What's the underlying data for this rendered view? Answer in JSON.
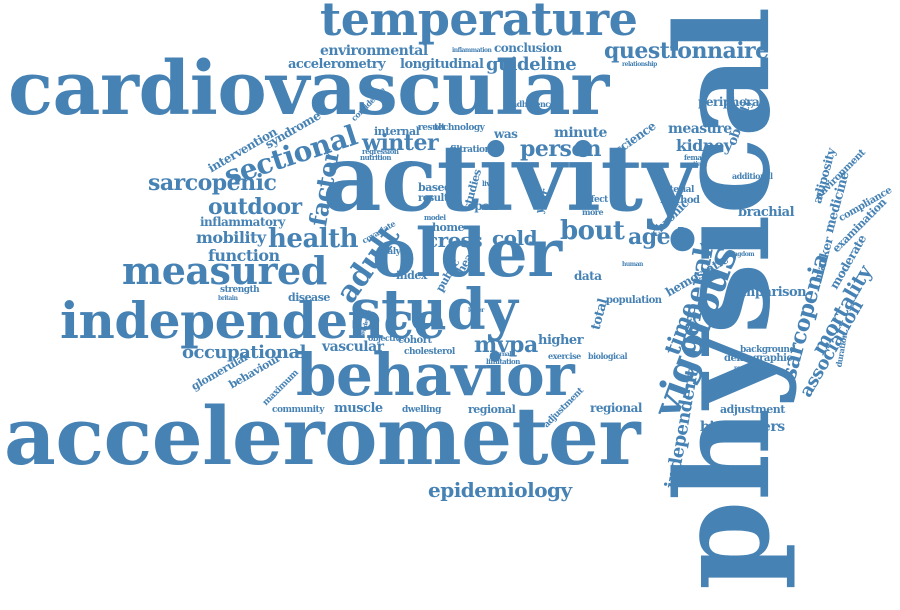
{
  "color": "#4682b4",
  "words": [
    {
      "id": "temperature",
      "text": "temperature"
    },
    {
      "id": "questionnaire",
      "text": "questionnaire"
    },
    {
      "id": "environmental",
      "text": "environmental"
    },
    {
      "id": "conclusion",
      "text": "conclusion"
    },
    {
      "id": "inflammation",
      "text": "inflammation"
    },
    {
      "id": "accelerometry",
      "text": "accelerometry"
    },
    {
      "id": "longitudinal",
      "text": "longitudinal"
    },
    {
      "id": "guideline",
      "text": "guideline"
    },
    {
      "id": "relationship",
      "text": "relationship"
    },
    {
      "id": "cardiovascular",
      "text": "cardiovascular"
    },
    {
      "id": "physical",
      "text": "physical"
    },
    {
      "id": "adherence",
      "text": "adherence"
    },
    {
      "id": "peripheral",
      "text": "peripheral"
    },
    {
      "id": "intervention",
      "text": "intervention"
    },
    {
      "id": "syndrome",
      "text": "syndrome"
    },
    {
      "id": "confidence",
      "text": "confidence"
    },
    {
      "id": "sectional",
      "text": "sectional"
    },
    {
      "id": "internal",
      "text": "internal"
    },
    {
      "id": "technology",
      "text": "technology"
    },
    {
      "id": "result",
      "text": "result"
    },
    {
      "id": "was",
      "text": "was"
    },
    {
      "id": "minute",
      "text": "minute"
    },
    {
      "id": "measure",
      "text": "measure"
    },
    {
      "id": "obesity",
      "text": "obesity"
    },
    {
      "id": "regression",
      "text": "regression"
    },
    {
      "id": "winter",
      "text": "winter"
    },
    {
      "id": "filtration",
      "text": "filtration"
    },
    {
      "id": "person",
      "text": "person"
    },
    {
      "id": "science",
      "text": "science"
    },
    {
      "id": "kidney",
      "text": "kidney"
    },
    {
      "id": "nutrition",
      "text": "nutrition"
    },
    {
      "id": "activity",
      "text": "activity"
    },
    {
      "id": "female",
      "text": "female"
    },
    {
      "id": "patient",
      "text": "patient"
    },
    {
      "id": "additional",
      "text": "additional"
    },
    {
      "id": "sarcopenic",
      "text": "sarcopenic"
    },
    {
      "id": "factor",
      "text": "factor"
    },
    {
      "id": "based",
      "text": "based"
    },
    {
      "id": "result2",
      "text": "result"
    },
    {
      "id": "studies",
      "text": "studies"
    },
    {
      "id": "spell",
      "text": "spell"
    },
    {
      "id": "living",
      "text": "living"
    },
    {
      "id": "effect",
      "text": "effect"
    },
    {
      "id": "arterial",
      "text": "arterial"
    },
    {
      "id": "method",
      "text": "method"
    },
    {
      "id": "adiposity",
      "text": "adiposity"
    },
    {
      "id": "environment",
      "text": "environment"
    },
    {
      "id": "outdoor",
      "text": "outdoor"
    },
    {
      "id": "year",
      "text": "year"
    },
    {
      "id": "more",
      "text": "more"
    },
    {
      "id": "chronic",
      "text": "chronic"
    },
    {
      "id": "medicine",
      "text": "medicine"
    },
    {
      "id": "brachial",
      "text": "brachial"
    },
    {
      "id": "compliance",
      "text": "compliance"
    },
    {
      "id": "inflammatory",
      "text": "inflammatory"
    },
    {
      "id": "model",
      "text": "model"
    },
    {
      "id": "home",
      "text": "home"
    },
    {
      "id": "covariate",
      "text": "covariate"
    },
    {
      "id": "examination",
      "text": "examination"
    },
    {
      "id": "mobility",
      "text": "mobility"
    },
    {
      "id": "health",
      "text": "health"
    },
    {
      "id": "cross",
      "text": "cross"
    },
    {
      "id": "cold",
      "text": "cold"
    },
    {
      "id": "bout",
      "text": "bout"
    },
    {
      "id": "aged",
      "text": "aged"
    },
    {
      "id": "variation",
      "text": "variation"
    },
    {
      "id": "function",
      "text": "function"
    },
    {
      "id": "adult",
      "text": "adult"
    },
    {
      "id": "analyse",
      "text": "analyse"
    },
    {
      "id": "older",
      "text": "older"
    },
    {
      "id": "heart",
      "text": "heart"
    },
    {
      "id": "public",
      "text": "public"
    },
    {
      "id": "sarcopenia",
      "text": "sarcopenia"
    },
    {
      "id": "marker",
      "text": "marker"
    },
    {
      "id": "moderate",
      "text": "moderate"
    },
    {
      "id": "mortality",
      "text": "mortality"
    },
    {
      "id": "kingdom",
      "text": "kingdom"
    },
    {
      "id": "measured",
      "text": "measured"
    },
    {
      "id": "index",
      "text": "index"
    },
    {
      "id": "data",
      "text": "data"
    },
    {
      "id": "human",
      "text": "human"
    },
    {
      "id": "risk",
      "text": "risk"
    },
    {
      "id": "general",
      "text": "general"
    },
    {
      "id": "hemostatic",
      "text": "hemostatic"
    },
    {
      "id": "strength",
      "text": "strength"
    },
    {
      "id": "disease",
      "text": "disease"
    },
    {
      "id": "study",
      "text": "study"
    },
    {
      "id": "vigorous",
      "text": "vigorous"
    },
    {
      "id": "comparison",
      "text": "comparison"
    },
    {
      "id": "britain",
      "text": "britain"
    },
    {
      "id": "lower",
      "text": "lower"
    },
    {
      "id": "total",
      "text": "total"
    },
    {
      "id": "time",
      "text": "time"
    },
    {
      "id": "population",
      "text": "population"
    },
    {
      "id": "association",
      "text": "association"
    },
    {
      "id": "independence",
      "text": "independence"
    },
    {
      "id": "evidence",
      "text": "evidence"
    },
    {
      "id": "objective",
      "text": "objective"
    },
    {
      "id": "cohort",
      "text": "cohort"
    },
    {
      "id": "mvpa",
      "text": "mvpa"
    },
    {
      "id": "higher",
      "text": "higher"
    },
    {
      "id": "vascular",
      "text": "vascular"
    },
    {
      "id": "cholesterol",
      "text": "cholesterol"
    },
    {
      "id": "diurnal",
      "text": "diurnal"
    },
    {
      "id": "exercise",
      "text": "exercise"
    },
    {
      "id": "biological",
      "text": "biological"
    },
    {
      "id": "background",
      "text": "background"
    },
    {
      "id": "demographic",
      "text": "demographic"
    },
    {
      "id": "prospective",
      "text": "prospective"
    },
    {
      "id": "occupational",
      "text": "occupational"
    },
    {
      "id": "glomerular",
      "text": "glomerular"
    },
    {
      "id": "behaviour",
      "text": "behaviour"
    },
    {
      "id": "behavior",
      "text": "behavior"
    },
    {
      "id": "maximum",
      "text": "maximum"
    },
    {
      "id": "limitation",
      "text": "limitation"
    },
    {
      "id": "biomedicine",
      "text": "biomedicine"
    },
    {
      "id": "independent",
      "text": "independent"
    },
    {
      "id": "duration",
      "text": "duration"
    },
    {
      "id": "community",
      "text": "community"
    },
    {
      "id": "muscle",
      "text": "muscle"
    },
    {
      "id": "dwelling",
      "text": "dwelling"
    },
    {
      "id": "regional",
      "text": "regional"
    },
    {
      "id": "adjustment",
      "text": "adjustment"
    },
    {
      "id": "biomarkers",
      "text": "biomarkers"
    },
    {
      "id": "accelerometer",
      "text": "accelerometer"
    },
    {
      "id": "epidemiology",
      "text": "epidemiology"
    }
  ]
}
